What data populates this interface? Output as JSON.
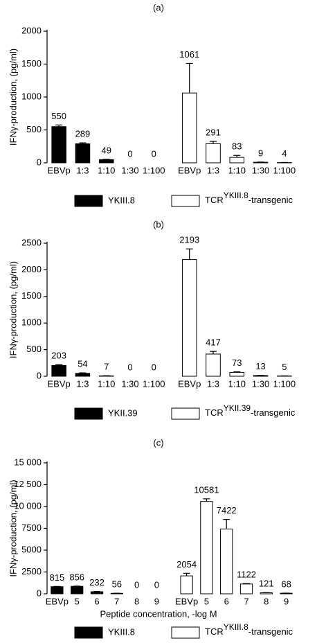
{
  "chart_data": [
    {
      "type": "bar",
      "panel": "(a)",
      "ylabel": "IFNγ-production, (pg/ml)",
      "categories": [
        "EBVp",
        "1:3",
        "1:10",
        "1:30",
        "1:100",
        "EBVp",
        "1:3",
        "1:10",
        "1:30",
        "1:100"
      ],
      "series": [
        {
          "name": "YKIII.8",
          "color": "#000000",
          "values": [
            550,
            289,
            49,
            0,
            0,
            null,
            null,
            null,
            null,
            null
          ],
          "errors": [
            25,
            15,
            5,
            0,
            0,
            null,
            null,
            null,
            null,
            null
          ]
        },
        {
          "name": [
            "TCR",
            "YKIII.8",
            "-transgenic"
          ],
          "color": "#ffffff",
          "values": [
            null,
            null,
            null,
            null,
            null,
            1061,
            291,
            83,
            9,
            4
          ],
          "errors": [
            null,
            null,
            null,
            null,
            null,
            450,
            35,
            30,
            3,
            2
          ]
        }
      ],
      "ylim": [
        0,
        2000
      ],
      "yticks": [
        0,
        500,
        1000,
        1500,
        2000
      ]
    },
    {
      "type": "bar",
      "panel": "(b)",
      "ylabel": "IFNγ-production, (pg/ml)",
      "categories": [
        "EBVp",
        "1:3",
        "1:10",
        "1:30",
        "1:100",
        "EBVp",
        "1:3",
        "1:10",
        "1:30",
        "1:100"
      ],
      "series": [
        {
          "name": "YKII.39",
          "color": "#000000",
          "values": [
            203,
            54,
            7,
            0,
            0,
            null,
            null,
            null,
            null,
            null
          ],
          "errors": [
            15,
            10,
            3,
            0,
            0,
            null,
            null,
            null,
            null,
            null
          ]
        },
        {
          "name": [
            "TCR",
            "YKII.39",
            "-transgenic"
          ],
          "color": "#ffffff",
          "values": [
            null,
            null,
            null,
            null,
            null,
            2193,
            417,
            73,
            13,
            5
          ],
          "errors": [
            null,
            null,
            null,
            null,
            null,
            200,
            50,
            10,
            3,
            2
          ]
        }
      ],
      "ylim": [
        0,
        2500
      ],
      "yticks": [
        0,
        500,
        1000,
        1500,
        2000,
        2500
      ]
    },
    {
      "type": "bar",
      "panel": "(c)",
      "ylabel": "IFNγ-production, (pg/ml)",
      "xlabel": "Peptide concentration, -log M",
      "categories": [
        "EBVp",
        "5",
        "6",
        "7",
        "8",
        "9",
        "EBVp",
        "5",
        "6",
        "7",
        "8",
        "9"
      ],
      "series": [
        {
          "name": "YKIII.8",
          "color": "#000000",
          "values": [
            815,
            856,
            232,
            56,
            0,
            0,
            null,
            null,
            null,
            null,
            null,
            null
          ],
          "errors": [
            30,
            30,
            40,
            10,
            0,
            0,
            null,
            null,
            null,
            null,
            null,
            null
          ]
        },
        {
          "name": [
            "TCR",
            "YKIII.8",
            "-transgenic"
          ],
          "color": "#ffffff",
          "values": [
            null,
            null,
            null,
            null,
            null,
            null,
            2054,
            10581,
            7422,
            1122,
            121,
            68
          ],
          "errors": [
            null,
            null,
            null,
            null,
            null,
            null,
            300,
            300,
            1100,
            50,
            20,
            10
          ]
        }
      ],
      "ylim": [
        0,
        15000
      ],
      "yticks": [
        0,
        2500,
        5000,
        7500,
        {
          "value": 10000,
          "label": "10 000"
        },
        {
          "value": 12500,
          "label": "12 500"
        },
        {
          "value": 15000,
          "label": "15 000"
        }
      ]
    }
  ]
}
